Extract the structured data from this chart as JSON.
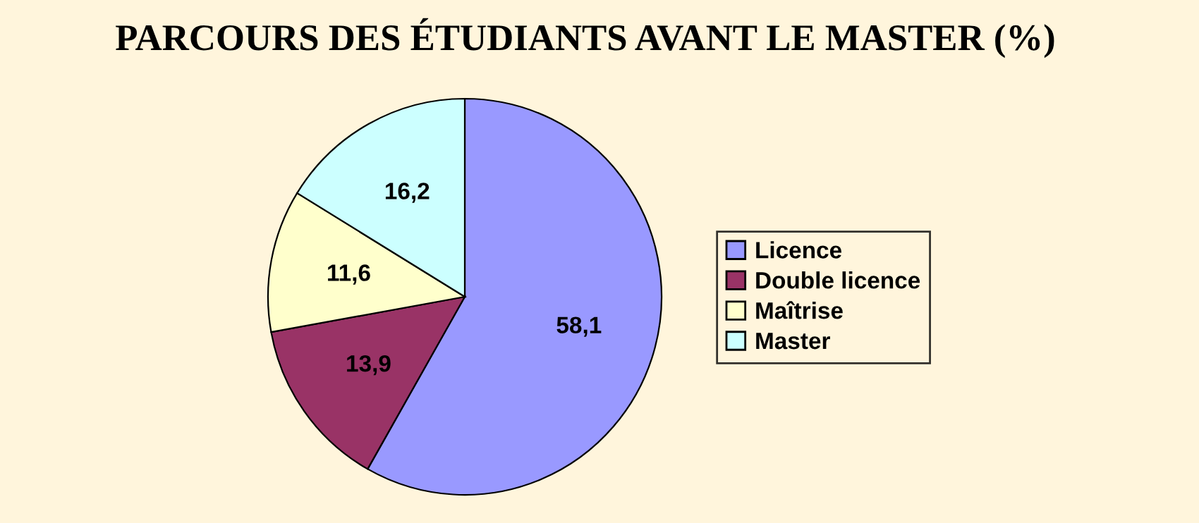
{
  "chart_data": {
    "type": "pie",
    "title": "PARCOURS DES ÉTUDIANTS AVANT LE MASTER (%)",
    "categories": [
      "Licence",
      "Double licence",
      "Maîtrise",
      "Master"
    ],
    "values": [
      58.1,
      13.9,
      11.6,
      16.2
    ],
    "colors": [
      "#9999ff",
      "#993366",
      "#ffffcc",
      "#ccffff"
    ],
    "value_labels": [
      "58,1",
      "13,9",
      "11,6",
      "16,2"
    ],
    "legend": "right"
  }
}
